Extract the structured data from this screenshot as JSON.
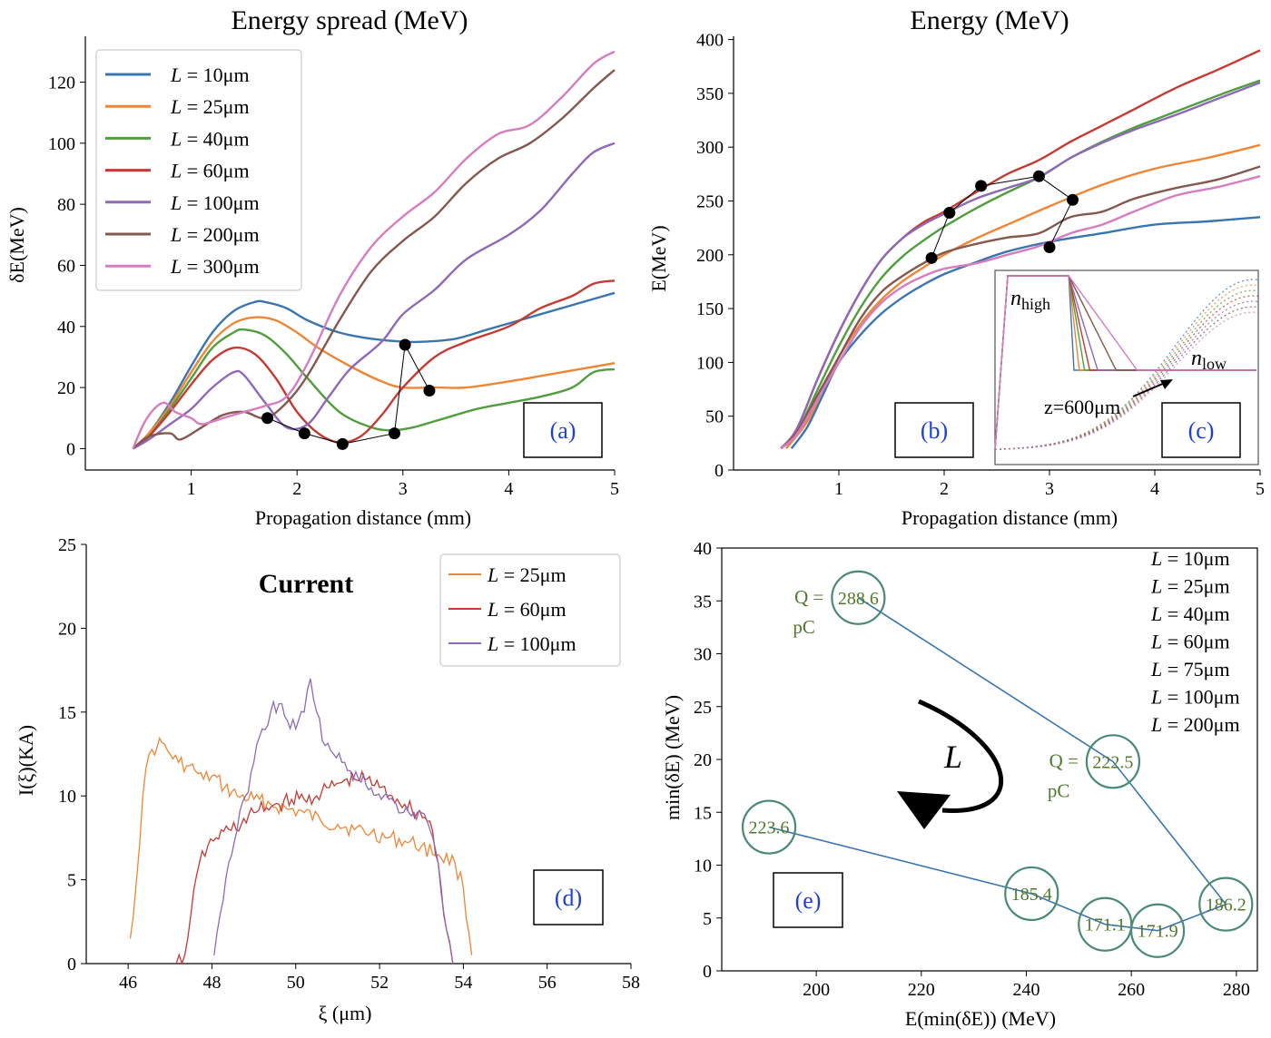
{
  "chart_data": [
    {
      "id": "a",
      "type": "line",
      "title": "Energy spread (MeV)",
      "xlabel": "Propagation distance (mm)",
      "ylabel": "δE(MeV)",
      "xlim": [
        0,
        5
      ],
      "ylim": [
        -7,
        135
      ],
      "xticks": [
        1,
        2,
        3,
        4,
        5
      ],
      "xtick_labels": [
        "1",
        "2",
        "3",
        "4",
        "5"
      ],
      "yticks": [
        0,
        20,
        40,
        60,
        80,
        100,
        120
      ],
      "ytick_labels": [
        "0",
        "20",
        "40",
        "60",
        "80",
        "100",
        "120"
      ],
      "panel_label": "(a)",
      "legend": {
        "position": "top-left",
        "labels": [
          "L = 10μm",
          "L = 25μm",
          "L = 40μm",
          "L = 60μm",
          "L = 100μm",
          "L = 200μm",
          "L = 300μm"
        ]
      },
      "series": [
        {
          "name": "L = 10μm",
          "color": "#3b75af",
          "x": [
            0.45,
            0.6,
            0.8,
            1.0,
            1.2,
            1.4,
            1.6,
            1.7,
            1.9,
            2.1,
            2.4,
            2.7,
            3.0,
            3.2,
            3.5,
            3.8,
            4.1,
            4.5,
            4.8,
            5.0
          ],
          "y": [
            0,
            5,
            15,
            27,
            38,
            45,
            48,
            48,
            46,
            42,
            38,
            36,
            35,
            35,
            36,
            39,
            42,
            46,
            49,
            51
          ]
        },
        {
          "name": "L = 25μm",
          "color": "#ef8636",
          "x": [
            0.45,
            0.6,
            0.8,
            1.0,
            1.2,
            1.4,
            1.6,
            1.8,
            2.0,
            2.2,
            2.5,
            2.8,
            3.0,
            3.3,
            3.6,
            4.0,
            4.5,
            5.0
          ],
          "y": [
            0,
            5,
            14,
            25,
            35,
            41,
            43,
            42,
            38,
            33,
            27,
            22,
            20,
            20,
            20,
            22,
            25,
            28
          ]
        },
        {
          "name": "L = 40μm",
          "color": "#519e3e",
          "x": [
            0.45,
            0.6,
            0.8,
            1.0,
            1.2,
            1.4,
            1.5,
            1.7,
            1.9,
            2.1,
            2.4,
            2.7,
            2.9,
            3.1,
            3.4,
            3.7,
            4.0,
            4.3,
            4.6,
            4.8,
            5.0
          ],
          "y": [
            0,
            4,
            13,
            23,
            33,
            38,
            39,
            37,
            31,
            23,
            12,
            7,
            6,
            7,
            10,
            13,
            15,
            17,
            20,
            25,
            26
          ]
        },
        {
          "name": "L = 60μm",
          "color": "#c53a32",
          "x": [
            0.45,
            0.6,
            0.8,
            1.0,
            1.2,
            1.4,
            1.6,
            1.8,
            2.0,
            2.2,
            2.4,
            2.6,
            2.8,
            3.0,
            3.3,
            3.6,
            4.0,
            4.3,
            4.6,
            4.8,
            5.0
          ],
          "y": [
            0,
            4,
            12,
            21,
            29,
            33,
            31,
            23,
            12,
            5,
            2,
            4,
            11,
            20,
            30,
            35,
            40,
            46,
            50,
            54,
            55
          ]
        },
        {
          "name": "L = 100μm",
          "color": "#8d69b8",
          "x": [
            0.45,
            0.6,
            0.8,
            1.0,
            1.2,
            1.4,
            1.5,
            1.7,
            1.9,
            2.1,
            2.3,
            2.5,
            2.8,
            3.0,
            3.3,
            3.6,
            4.0,
            4.3,
            4.6,
            4.8,
            5.0
          ],
          "y": [
            0,
            3,
            8,
            13,
            20,
            25,
            24,
            15,
            7,
            8,
            17,
            26,
            35,
            44,
            52,
            62,
            70,
            78,
            90,
            97,
            100
          ]
        },
        {
          "name": "L = 200μm",
          "color": "#84584e",
          "x": [
            0.45,
            0.6,
            0.8,
            0.9,
            1.1,
            1.3,
            1.5,
            1.7,
            1.9,
            2.1,
            2.4,
            2.7,
            3.0,
            3.3,
            3.6,
            3.9,
            4.2,
            4.5,
            4.8,
            5.0
          ],
          "y": [
            0,
            4,
            5,
            3,
            7,
            11,
            12,
            10,
            15,
            24,
            42,
            58,
            68,
            76,
            87,
            95,
            100,
            108,
            118,
            124
          ]
        },
        {
          "name": "L = 300μm",
          "color": "#d57dbf",
          "x": [
            0.45,
            0.55,
            0.65,
            0.75,
            0.85,
            1.0,
            1.1,
            1.3,
            1.5,
            1.7,
            1.9,
            2.1,
            2.4,
            2.7,
            3.0,
            3.3,
            3.6,
            3.9,
            4.2,
            4.5,
            4.8,
            5.0
          ],
          "y": [
            0,
            8,
            13,
            15,
            12,
            10,
            8,
            10,
            12,
            14,
            17,
            28,
            50,
            66,
            76,
            84,
            95,
            103,
            106,
            115,
            126,
            130
          ]
        }
      ],
      "markers": {
        "color": "#000000",
        "x": [
          1.72,
          2.07,
          2.43,
          2.92,
          3.02,
          3.25
        ],
        "y": [
          10,
          5,
          1.5,
          5,
          34,
          19
        ]
      }
    },
    {
      "id": "b",
      "type": "line",
      "title": "Energy (MeV)",
      "xlabel": "Propagation distance (mm)",
      "ylabel": "E(MeV)",
      "xlim": [
        0,
        5
      ],
      "ylim": [
        0,
        403
      ],
      "xticks": [
        1,
        2,
        3,
        4,
        5
      ],
      "xtick_labels": [
        "1",
        "2",
        "3",
        "4",
        "5"
      ],
      "yticks": [
        0,
        50,
        100,
        150,
        200,
        250,
        300,
        350,
        400
      ],
      "ytick_labels": [
        "0",
        "50",
        "100",
        "150",
        "200",
        "250",
        "300",
        "350",
        "400"
      ],
      "panel_label": "(b)",
      "series": [
        {
          "name": "",
          "color": "#3b75af",
          "x": [
            0.55,
            0.7,
            0.85,
            1.0,
            1.2,
            1.4,
            1.6,
            1.8,
            2.0,
            2.3,
            2.6,
            3.0,
            3.5,
            4.0,
            4.5,
            5.0
          ],
          "y": [
            20,
            40,
            70,
            100,
            125,
            145,
            160,
            172,
            182,
            193,
            203,
            212,
            220,
            228,
            231,
            235
          ]
        },
        {
          "name": "",
          "color": "#ef8636",
          "x": [
            0.5,
            0.7,
            0.85,
            1.0,
            1.2,
            1.4,
            1.6,
            1.8,
            2.0,
            2.3,
            2.6,
            3.0,
            3.5,
            4.0,
            4.5,
            5.0
          ],
          "y": [
            20,
            45,
            75,
            105,
            135,
            158,
            175,
            188,
            200,
            215,
            228,
            245,
            265,
            280,
            290,
            302
          ]
        },
        {
          "name": "",
          "color": "#519e3e",
          "x": [
            0.45,
            0.6,
            0.8,
            1.0,
            1.2,
            1.4,
            1.6,
            1.8,
            2.0,
            2.3,
            2.6,
            2.9,
            3.2,
            3.5,
            3.8,
            4.2,
            4.6,
            5.0
          ],
          "y": [
            20,
            35,
            75,
            115,
            150,
            178,
            198,
            213,
            226,
            243,
            258,
            272,
            290,
            305,
            318,
            333,
            348,
            362
          ]
        },
        {
          "name": "",
          "color": "#c53a32",
          "x": [
            0.45,
            0.6,
            0.8,
            1.0,
            1.2,
            1.4,
            1.6,
            1.8,
            2.0,
            2.3,
            2.6,
            2.9,
            3.2,
            3.5,
            3.8,
            4.2,
            4.6,
            5.0
          ],
          "y": [
            20,
            38,
            85,
            128,
            165,
            195,
            215,
            230,
            240,
            258,
            275,
            288,
            305,
            320,
            335,
            355,
            372,
            390
          ]
        },
        {
          "name": "",
          "color": "#8d69b8",
          "x": [
            0.45,
            0.6,
            0.8,
            1.0,
            1.2,
            1.4,
            1.6,
            1.8,
            2.0,
            2.3,
            2.6,
            2.9,
            3.2,
            3.5,
            3.8,
            4.2,
            4.6,
            5.0
          ],
          "y": [
            20,
            38,
            85,
            128,
            165,
            195,
            215,
            228,
            238,
            252,
            262,
            272,
            290,
            304,
            316,
            330,
            345,
            360
          ]
        },
        {
          "name": "",
          "color": "#84584e",
          "x": [
            0.45,
            0.6,
            0.8,
            1.0,
            1.2,
            1.4,
            1.6,
            1.8,
            2.0,
            2.3,
            2.6,
            2.9,
            3.2,
            3.5,
            3.8,
            4.2,
            4.6,
            5.0
          ],
          "y": [
            20,
            35,
            70,
            105,
            140,
            165,
            180,
            192,
            202,
            210,
            216,
            220,
            235,
            240,
            252,
            262,
            270,
            282
          ]
        },
        {
          "name": "",
          "color": "#d57dbf",
          "x": [
            0.45,
            0.6,
            0.8,
            1.0,
            1.2,
            1.4,
            1.6,
            1.8,
            2.0,
            2.3,
            2.6,
            2.9,
            3.2,
            3.5,
            3.8,
            4.2,
            4.6,
            5.0
          ],
          "y": [
            20,
            33,
            66,
            100,
            132,
            155,
            170,
            180,
            187,
            192,
            200,
            208,
            220,
            228,
            240,
            255,
            263,
            273
          ]
        }
      ],
      "markers": {
        "color": "#000000",
        "x": [
          1.88,
          2.05,
          2.35,
          2.9,
          3.22,
          3.0
        ],
        "y": [
          197,
          239,
          264,
          273,
          251,
          207
        ]
      }
    },
    {
      "id": "c",
      "type": "line",
      "panel_label": "(c)",
      "n_high_label": "n",
      "n_high_sub": "high",
      "n_low_label": "n",
      "n_low_sub": "low",
      "annotation": "z=600μm",
      "profiles": [
        {
          "color": "#3b75af",
          "ramp_end": 0.3
        },
        {
          "color": "#ef8636",
          "ramp_end": 0.32
        },
        {
          "color": "#519e3e",
          "ramp_end": 0.34
        },
        {
          "color": "#c53a32",
          "ramp_end": 0.36
        },
        {
          "color": "#8d69b8",
          "ramp_end": 0.39
        },
        {
          "color": "#84584e",
          "ramp_end": 0.46
        },
        {
          "color": "#d57dbf",
          "ramp_end": 0.54
        }
      ]
    },
    {
      "id": "d",
      "type": "line",
      "title": "Current",
      "xlabel": "ξ (μm)",
      "ylabel": "I(ξ)(KA)",
      "xlim": [
        45,
        58
      ],
      "ylim": [
        0,
        25
      ],
      "xticks": [
        46,
        48,
        50,
        52,
        54,
        56,
        58
      ],
      "xtick_labels": [
        "46",
        "48",
        "50",
        "52",
        "54",
        "56",
        "58"
      ],
      "yticks": [
        0,
        5,
        10,
        15,
        20,
        25
      ],
      "ytick_labels": [
        "0",
        "5",
        "10",
        "15",
        "20",
        "25"
      ],
      "panel_label": "(d)",
      "legend": {
        "position": "top-right",
        "labels": [
          "L = 25μm",
          "L = 60μm",
          "L = 100μm"
        ]
      },
      "series": [
        {
          "name": "L = 25μm",
          "color": "#ef8636",
          "x": [
            46.05,
            46.2,
            46.35,
            46.5,
            46.7,
            46.8,
            47.0,
            47.2,
            47.4,
            47.6,
            47.8,
            48.0,
            48.3,
            48.6,
            49.0,
            49.4,
            49.8,
            50.2,
            50.6,
            51.0,
            51.4,
            51.8,
            52.2,
            52.6,
            53.0,
            53.4,
            53.8,
            54.0,
            54.2
          ],
          "y": [
            1.5,
            5,
            10,
            12.5,
            13,
            13.2,
            12.5,
            12,
            11.8,
            11.5,
            11,
            11.2,
            10.5,
            10,
            9.8,
            9.5,
            9.2,
            9,
            8.5,
            8.3,
            8,
            7.8,
            7.5,
            7.3,
            7,
            6.5,
            6,
            4.5,
            0.5
          ]
        },
        {
          "name": "L = 60μm",
          "color": "#c53a32",
          "x": [
            47.15,
            47.35,
            47.5,
            47.7,
            47.9,
            48.1,
            48.4,
            48.7,
            49.0,
            49.3,
            49.6,
            49.9,
            50.2,
            50.5,
            50.8,
            51.1,
            51.4,
            51.7,
            52.0,
            52.3,
            52.6,
            52.9,
            53.2,
            53.4,
            53.6,
            53.75
          ],
          "y": [
            0,
            0.5,
            3,
            6,
            7,
            7.5,
            8,
            8.3,
            9,
            9.3,
            9.5,
            9.8,
            9.8,
            10,
            10.5,
            10.8,
            11,
            11,
            10.5,
            10,
            9.5,
            9,
            8.5,
            6,
            2,
            0
          ]
        },
        {
          "name": "L = 100μm",
          "color": "#8d69b8",
          "x": [
            48.05,
            48.2,
            48.4,
            48.6,
            48.8,
            49.0,
            49.2,
            49.4,
            49.6,
            49.8,
            50.0,
            50.2,
            50.35,
            50.5,
            50.7,
            50.9,
            51.1,
            51.3,
            51.5,
            51.8,
            52.1,
            52.4,
            52.7,
            53.0,
            53.2,
            53.4,
            53.6,
            53.75
          ],
          "y": [
            0.5,
            3,
            6,
            8,
            10,
            12,
            14,
            15,
            15.5,
            14.5,
            14,
            15,
            17,
            15,
            13,
            12.5,
            12,
            11.5,
            11,
            10.5,
            10,
            9.5,
            9,
            9,
            8,
            6,
            2,
            0
          ]
        }
      ]
    },
    {
      "id": "e",
      "type": "scatter",
      "xlabel": "E(min(δE)) (MeV)",
      "ylabel": "min(δE) (MeV)",
      "xlim": [
        182,
        284
      ],
      "ylim": [
        0,
        40
      ],
      "xticks": [
        200,
        220,
        240,
        260,
        280
      ],
      "xtick_labels": [
        "200",
        "220",
        "240",
        "260",
        "280"
      ],
      "yticks": [
        0,
        5,
        10,
        15,
        20,
        25,
        30,
        35,
        40
      ],
      "ytick_labels": [
        "0",
        "5",
        "10",
        "15",
        "20",
        "25",
        "30",
        "35",
        "40"
      ],
      "panel_label": "(e)",
      "arrow_label": "L",
      "legend_text": [
        "L = 10μm",
        "L = 25μm",
        "L = 40μm",
        "L = 60μm",
        "L = 75μm",
        "L = 100μm",
        "L = 200μm"
      ],
      "charge_unit": "pC",
      "charge_prefix": "Q =",
      "line_color": "#3b75af",
      "point_edge_color": "#4a8a72",
      "text_color": "#4e7a2a",
      "points": [
        {
          "x": 208,
          "y": 35.3,
          "label": "288.6",
          "q": true
        },
        {
          "x": 256.5,
          "y": 19.8,
          "label": "222.5",
          "q": true
        },
        {
          "x": 278,
          "y": 6.3,
          "label": "186.2",
          "q": false
        },
        {
          "x": 265,
          "y": 3.8,
          "label": "171.9",
          "q": false
        },
        {
          "x": 255,
          "y": 4.4,
          "label": "171.1",
          "q": false
        },
        {
          "x": 241,
          "y": 7.3,
          "label": "185.4",
          "q": false
        },
        {
          "x": 191,
          "y": 13.6,
          "label": "223.6",
          "q": false
        }
      ]
    }
  ]
}
